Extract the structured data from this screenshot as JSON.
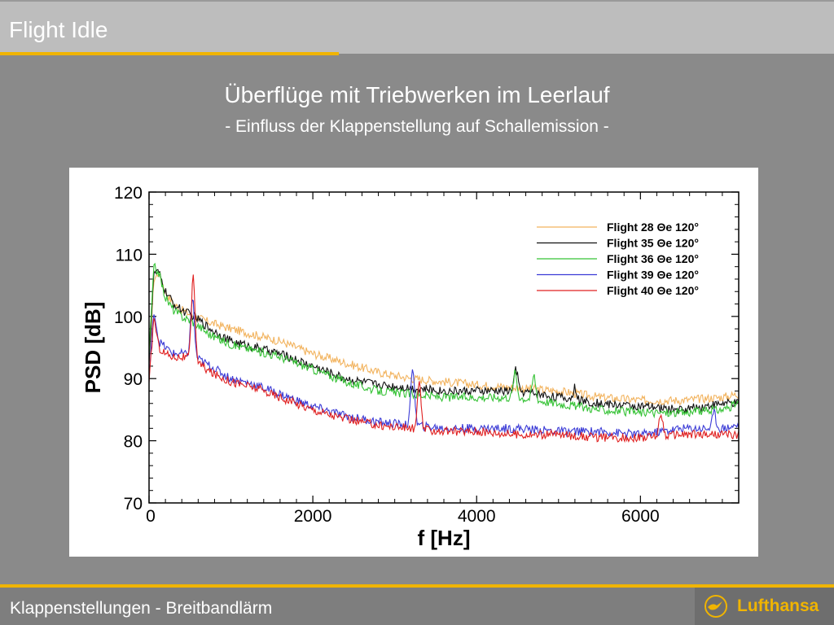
{
  "header": {
    "title": "Flight Idle"
  },
  "slide": {
    "title": "Überflüge mit Triebwerken im Leerlauf",
    "subtitle": "- Einfluss der Klappenstellung auf Schallemission -"
  },
  "footer": {
    "text": "Klappenstellungen - Breitbandlärm"
  },
  "logo": {
    "text": "Lufthansa",
    "icon": "crane-icon"
  },
  "colors": {
    "accent": "#f0b400",
    "header_bg": "#bdbdbd",
    "page_bg": "#8a8a8a"
  },
  "chart_data": {
    "type": "line",
    "title": "",
    "xlabel": "f [Hz]",
    "ylabel": "PSD [dB]",
    "xlim": [
      0,
      7200
    ],
    "ylim": [
      70,
      120
    ],
    "xticks": [
      0,
      2000,
      4000,
      6000
    ],
    "yticks": [
      70,
      80,
      90,
      100,
      110,
      120
    ],
    "grid": false,
    "legend_position": "top-right",
    "series": [
      {
        "name": "Flight 28 Θe 120°",
        "color": "#f2b35e",
        "x": [
          0,
          60,
          120,
          200,
          300,
          400,
          550,
          750,
          1000,
          1300,
          1600,
          2000,
          2400,
          2800,
          3200,
          3600,
          4000,
          4500,
          5000,
          5500,
          6000,
          6500,
          7000,
          7200
        ],
        "y": [
          92,
          106,
          107,
          104,
          102,
          101,
          100,
          99,
          98,
          97,
          96,
          94,
          92.5,
          91,
          90,
          89.5,
          89,
          88.5,
          88,
          87,
          86.5,
          86.5,
          87,
          87.5
        ]
      },
      {
        "name": "Flight 35 Θe 120°",
        "color": "#111111",
        "x": [
          0,
          60,
          120,
          200,
          300,
          400,
          550,
          750,
          1000,
          1300,
          1600,
          2000,
          2400,
          2800,
          3200,
          3600,
          4000,
          4500,
          5000,
          5500,
          6000,
          6500,
          7000,
          7200
        ],
        "y": [
          93,
          107,
          107,
          104,
          102,
          101,
          100,
          98,
          96,
          95,
          94,
          92,
          90,
          89,
          88.5,
          88,
          88,
          88,
          87,
          86,
          85.5,
          85,
          86,
          86
        ]
      },
      {
        "name": "Flight 36 Θe 120°",
        "color": "#35c235",
        "x": [
          0,
          60,
          120,
          200,
          300,
          400,
          550,
          750,
          1000,
          1300,
          1600,
          2000,
          2400,
          2800,
          3200,
          3600,
          4000,
          4500,
          5000,
          5500,
          6000,
          6500,
          7000,
          7200
        ],
        "y": [
          94,
          108,
          107,
          103,
          101,
          100,
          99,
          97,
          95.5,
          94.5,
          93.5,
          91.5,
          89.5,
          88,
          87.5,
          87,
          87,
          87,
          86,
          85,
          84.5,
          84.5,
          85,
          86
        ]
      },
      {
        "name": "Flight 39 Θe 120°",
        "color": "#3b3bd6",
        "x": [
          0,
          60,
          120,
          200,
          300,
          400,
          550,
          750,
          1000,
          1300,
          1600,
          2000,
          2400,
          2800,
          3200,
          3600,
          4000,
          4500,
          5000,
          5500,
          6000,
          6500,
          7000,
          7200
        ],
        "y": [
          90,
          101,
          96,
          95,
          94,
          94,
          93.5,
          92,
          90,
          89,
          87.5,
          85.5,
          84,
          83,
          82.5,
          82,
          82,
          82,
          81.5,
          81.5,
          81,
          82,
          82,
          82.5
        ]
      },
      {
        "name": "Flight 40 Θe 120°",
        "color": "#e02020",
        "x": [
          0,
          60,
          120,
          200,
          300,
          400,
          550,
          750,
          1000,
          1300,
          1600,
          2000,
          2400,
          2800,
          3200,
          3600,
          4000,
          4500,
          5000,
          5500,
          6000,
          6500,
          7000,
          7200
        ],
        "y": [
          89,
          100,
          95,
          94,
          93.5,
          93.5,
          93,
          91,
          89.5,
          88.5,
          87,
          85,
          83.5,
          82.5,
          82,
          81.5,
          81.5,
          81,
          81,
          80.5,
          80.5,
          81,
          81,
          81
        ]
      }
    ],
    "peaks": [
      {
        "series": 4,
        "x": 540,
        "y": 106.5
      },
      {
        "series": 3,
        "x": 530,
        "y": 103
      },
      {
        "series": 3,
        "x": 3220,
        "y": 92
      },
      {
        "series": 4,
        "x": 3300,
        "y": 89
      },
      {
        "series": 2,
        "x": 4470,
        "y": 91
      },
      {
        "series": 1,
        "x": 4480,
        "y": 91.5
      },
      {
        "series": 2,
        "x": 4700,
        "y": 90.5
      },
      {
        "series": 1,
        "x": 5200,
        "y": 88.5
      },
      {
        "series": 4,
        "x": 6250,
        "y": 84.5
      },
      {
        "series": 3,
        "x": 6900,
        "y": 84.5
      }
    ]
  }
}
